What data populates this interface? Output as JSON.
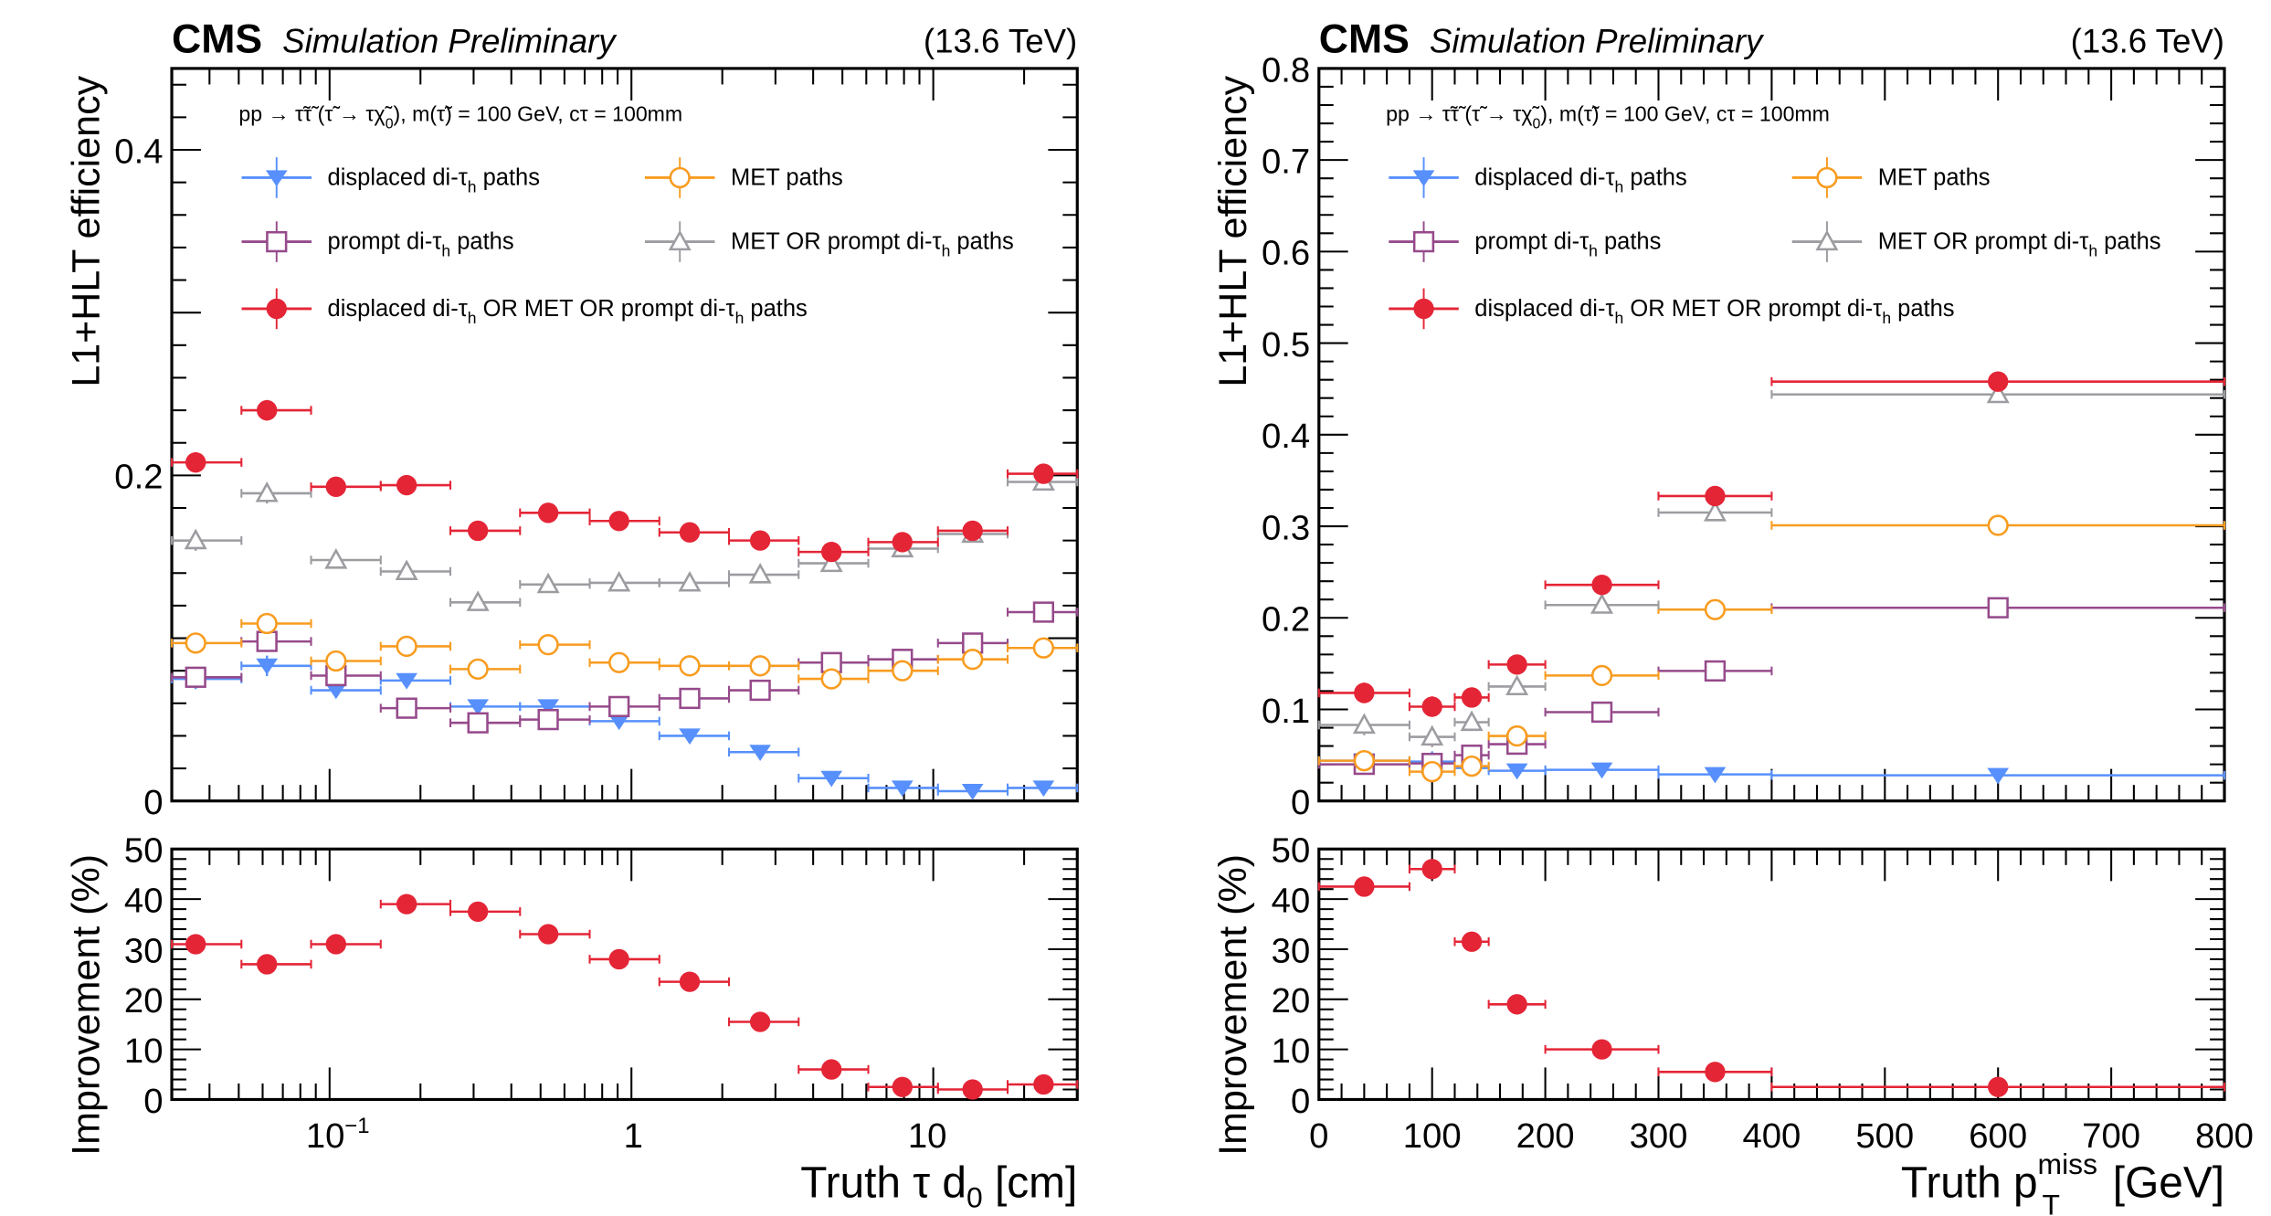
{
  "colors": {
    "displaced": "#5790fc",
    "met": "#f89c20",
    "prompt": "#964a8b",
    "met_or_prompt": "#9c9ca1",
    "combined": "#e42536"
  },
  "chart_data": [
    {
      "type": "scatter",
      "panel": "left-top",
      "header": {
        "experiment": "CMS",
        "status": "Simulation Preliminary",
        "energy": "(13.6 TeV)"
      },
      "process": "pp → τ̃τ̃ (τ̃ → τχ̃₀), m(τ̃) = 100 GeV, cτ = 100mm",
      "ylabel": "L1+HLT efficiency",
      "xscale": "log",
      "xlim": [
        0.03,
        30
      ],
      "ylim": [
        0,
        0.45
      ],
      "yticks": [
        0,
        0.2,
        0.4
      ],
      "ytick_labels": [
        "0",
        "0.2",
        "0.4"
      ],
      "legend_position": "top-left",
      "x": [
        0.036,
        0.062,
        0.105,
        0.18,
        0.31,
        0.53,
        0.91,
        1.56,
        2.67,
        4.6,
        7.9,
        13.5,
        23.2
      ],
      "series": [
        {
          "key": "displaced",
          "name": "displaced di-τh paths",
          "marker": "triangle-down-filled",
          "values": [
            0.075,
            0.083,
            0.068,
            0.074,
            0.058,
            0.058,
            0.049,
            0.04,
            0.03,
            0.014,
            0.008,
            0.006,
            0.008
          ]
        },
        {
          "key": "met",
          "name": "MET paths",
          "marker": "circle-open",
          "values": [
            0.097,
            0.109,
            0.086,
            0.095,
            0.081,
            0.096,
            0.085,
            0.083,
            0.083,
            0.075,
            0.08,
            0.087,
            0.094
          ]
        },
        {
          "key": "prompt",
          "name": "prompt di-τh paths",
          "marker": "square-open",
          "values": [
            0.076,
            0.098,
            0.077,
            0.057,
            0.048,
            0.05,
            0.058,
            0.063,
            0.068,
            0.085,
            0.087,
            0.097,
            0.116
          ]
        },
        {
          "key": "met_or_prompt",
          "name": "MET OR prompt di-τh paths",
          "marker": "triangle-up-open",
          "values": [
            0.16,
            0.189,
            0.148,
            0.141,
            0.122,
            0.133,
            0.134,
            0.134,
            0.139,
            0.146,
            0.155,
            0.164,
            0.196
          ]
        },
        {
          "key": "combined",
          "name": "displaced di-τh OR MET OR prompt di-τh paths",
          "marker": "circle-filled",
          "values": [
            0.208,
            0.24,
            0.193,
            0.194,
            0.166,
            0.177,
            0.172,
            0.165,
            0.16,
            0.153,
            0.159,
            0.166,
            0.201
          ]
        }
      ]
    },
    {
      "type": "scatter",
      "panel": "left-bottom",
      "ylabel": "Improvement (%)",
      "xlabel": "Truth τ d0 [cm]",
      "xscale": "log",
      "xlim": [
        0.03,
        30
      ],
      "xticks": [
        0.1,
        1,
        10
      ],
      "xtick_labels": [
        "10⁻¹",
        "1",
        "10"
      ],
      "ylim": [
        0,
        50
      ],
      "yticks": [
        0,
        10,
        20,
        30,
        40,
        50
      ],
      "x": [
        0.036,
        0.062,
        0.105,
        0.18,
        0.31,
        0.53,
        0.91,
        1.56,
        2.67,
        4.6,
        7.9,
        13.5,
        23.2
      ],
      "series": [
        {
          "key": "combined",
          "name": "Improvement",
          "values": [
            31,
            27,
            31,
            39,
            37.5,
            33,
            28,
            23.5,
            15.5,
            6,
            2.5,
            2,
            3
          ]
        }
      ]
    },
    {
      "type": "scatter",
      "panel": "right-top",
      "header": {
        "experiment": "CMS",
        "status": "Simulation Preliminary",
        "energy": "(13.6 TeV)"
      },
      "process": "pp → τ̃τ̃ (τ̃ → τχ̃₀), m(τ̃) = 100 GeV, cτ = 100mm",
      "ylabel": "L1+HLT efficiency",
      "xscale": "linear",
      "xlim": [
        0,
        800
      ],
      "ylim": [
        0,
        0.8
      ],
      "yticks": [
        0,
        0.1,
        0.2,
        0.3,
        0.4,
        0.5,
        0.6,
        0.7,
        0.8
      ],
      "ytick_labels": [
        "0",
        "0.1",
        "0.2",
        "0.3",
        "0.4",
        "0.5",
        "0.6",
        "0.7",
        "0.8"
      ],
      "legend_position": "top-left",
      "bin_edges": [
        0,
        80,
        120,
        150,
        200,
        300,
        400,
        800
      ],
      "x": [
        40,
        100,
        135,
        175,
        250,
        350,
        600
      ],
      "series": [
        {
          "key": "displaced",
          "name": "displaced di-τh paths",
          "marker": "triangle-down-filled",
          "values": [
            0.044,
            0.043,
            0.036,
            0.033,
            0.034,
            0.029,
            0.028
          ]
        },
        {
          "key": "met",
          "name": "MET paths",
          "marker": "circle-open",
          "values": [
            0.044,
            0.032,
            0.038,
            0.071,
            0.137,
            0.209,
            0.301
          ]
        },
        {
          "key": "prompt",
          "name": "prompt di-τh paths",
          "marker": "square-open",
          "values": [
            0.04,
            0.041,
            0.05,
            0.062,
            0.097,
            0.142,
            0.211
          ]
        },
        {
          "key": "met_or_prompt",
          "name": "MET OR prompt di-τh paths",
          "marker": "triangle-up-open",
          "values": [
            0.083,
            0.07,
            0.086,
            0.125,
            0.214,
            0.315,
            0.444
          ]
        },
        {
          "key": "combined",
          "name": "displaced di-τh OR MET OR prompt di-τh paths",
          "marker": "circle-filled",
          "values": [
            0.118,
            0.103,
            0.113,
            0.149,
            0.236,
            0.333,
            0.458
          ]
        }
      ]
    },
    {
      "type": "scatter",
      "panel": "right-bottom",
      "ylabel": "Improvement (%)",
      "xlabel": "Truth pT miss [GeV]",
      "xscale": "linear",
      "xlim": [
        0,
        800
      ],
      "xticks": [
        0,
        100,
        200,
        300,
        400,
        500,
        600,
        700,
        800
      ],
      "xtick_labels": [
        "0",
        "100",
        "200",
        "300",
        "400",
        "500",
        "600",
        "700",
        "800"
      ],
      "ylim": [
        0,
        50
      ],
      "yticks": [
        0,
        10,
        20,
        30,
        40,
        50
      ],
      "bin_edges": [
        0,
        80,
        120,
        150,
        200,
        300,
        400,
        800
      ],
      "x": [
        40,
        100,
        135,
        175,
        250,
        350,
        600
      ],
      "series": [
        {
          "key": "combined",
          "name": "Improvement",
          "values": [
            42.5,
            46,
            31.5,
            19,
            10,
            5.5,
            2.5
          ]
        }
      ]
    }
  ],
  "text": {
    "cms": "CMS",
    "status": "Simulation Preliminary",
    "energy": "(13.6 TeV)",
    "ylabel_eff": "L1+HLT efficiency",
    "ylabel_imp": "Improvement (%)",
    "xlabel_left_main": "Truth τ d",
    "xlabel_left_sub": "0",
    "xlabel_left_unit": " [cm]",
    "xlabel_right_main": "Truth p",
    "xlabel_right_sup": "miss",
    "xlabel_right_sub": "T",
    "xlabel_right_unit": " [GeV]",
    "proc_a": "pp → τ̃τ̃ (τ̃ → τχ̃",
    "proc_sub": "0",
    "proc_b": "), m(τ̃) = 100 GeV, cτ = 100mm",
    "leg_displaced_a": "displaced di-τ",
    "leg_met": "MET paths",
    "leg_prompt_a": "prompt di-τ",
    "leg_metprompt_a": "MET OR prompt di-τ",
    "leg_combined_a": "displaced di-τ",
    "leg_combined_b": " OR MET OR prompt di-τ",
    "h": "h",
    "paths": " paths",
    "tick_m1_base": "10",
    "tick_m1_exp": "−1",
    "tick_1": "1",
    "tick_10": "10"
  }
}
